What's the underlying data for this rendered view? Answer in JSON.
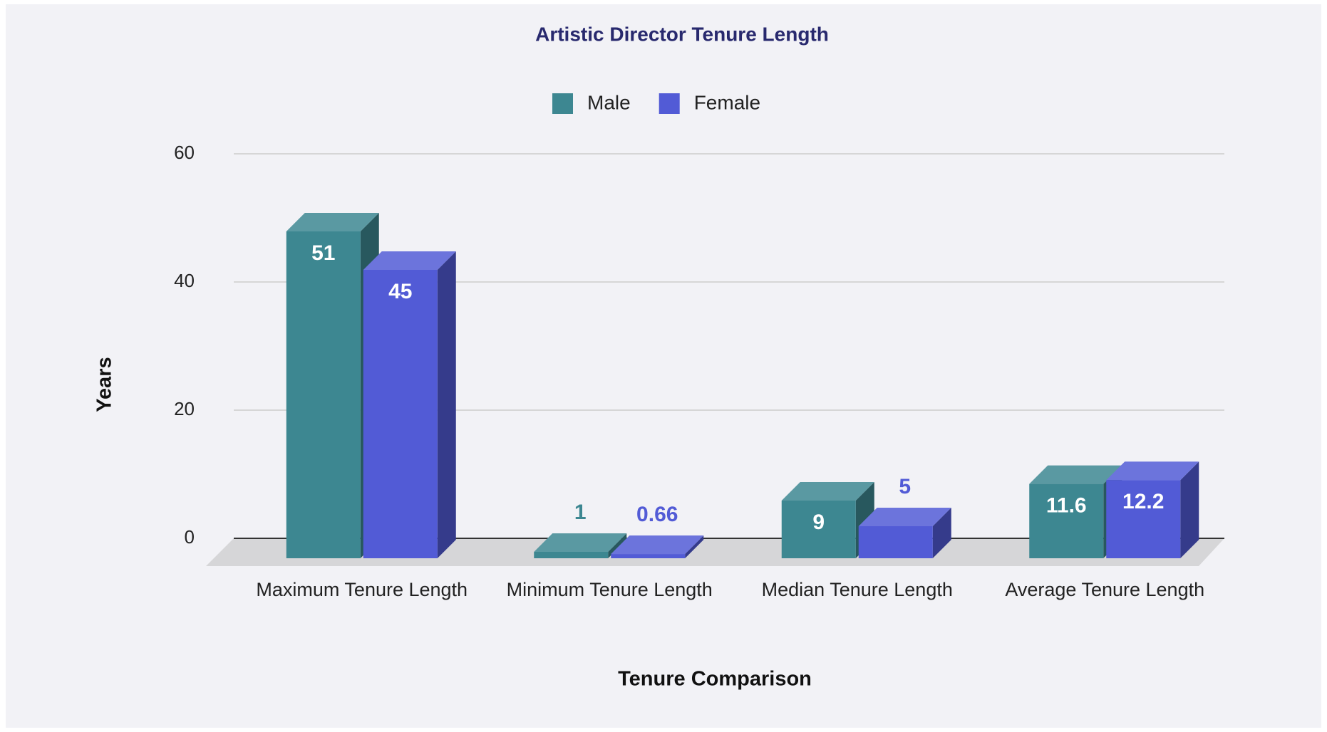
{
  "chart_data": {
    "type": "bar3d",
    "title": "Artistic Director Tenure Length",
    "x_label": "Tenure Comparison",
    "y_label": "Years",
    "categories": [
      "Maximum Tenure Length",
      "Minimum Tenure Length",
      "Median Tenure Length",
      "Average Tenure Length"
    ],
    "series": [
      {
        "name": "Male",
        "color": "#3d8791",
        "values": [
          51,
          1,
          9,
          11.6
        ]
      },
      {
        "name": "Female",
        "color": "#525bd6",
        "values": [
          45,
          0.66,
          5,
          12.2
        ]
      }
    ],
    "ylim": [
      0,
      60
    ],
    "yticks": [
      0,
      20,
      40,
      60
    ],
    "grid": true,
    "legend": "top"
  }
}
